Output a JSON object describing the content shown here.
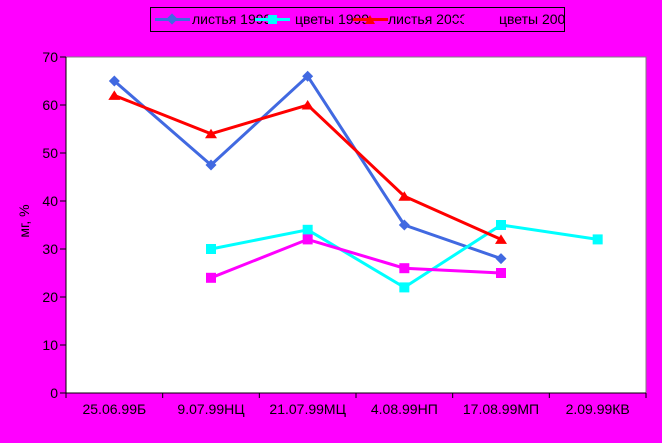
{
  "chart_data": {
    "type": "line",
    "title": "",
    "xlabel": "",
    "ylabel": "мг, %",
    "ylim": [
      0,
      70
    ],
    "yticks": [
      0,
      10,
      20,
      30,
      40,
      50,
      60,
      70
    ],
    "grid": false,
    "legend_position": "top-center",
    "background_color": "#FF00FF",
    "plot_background": "#FFFFFF",
    "plot_border_color": "#808080",
    "axis_color": "#000000",
    "categories": [
      "25.06.99Б",
      "9.07.99НЦ",
      "21.07.99МЦ",
      "4.08.99НП",
      "17.08.99МП",
      "2.09.99КВ"
    ],
    "series": [
      {
        "name": "листья 1999",
        "color": "#4169E1",
        "marker": "diamond",
        "values": [
          65,
          47.5,
          66,
          35,
          28,
          null
        ]
      },
      {
        "name": "цветы 1999",
        "color": "#00FFFF",
        "marker": "square",
        "values": [
          null,
          30,
          34,
          22,
          35,
          32
        ]
      },
      {
        "name": "листья 2000",
        "color": "#FF0000",
        "marker": "triangle",
        "values": [
          62,
          54,
          60,
          41,
          32,
          null
        ]
      },
      {
        "name": "цветы 2000",
        "color": "#FF00FF",
        "marker": "square",
        "values": [
          null,
          24,
          32,
          26,
          25,
          null
        ]
      }
    ]
  }
}
